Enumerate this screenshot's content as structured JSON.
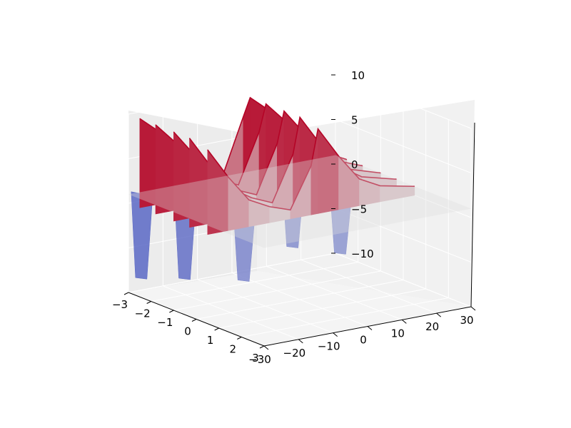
{
  "chart_data": {
    "type": "surface3d",
    "title": "",
    "xlabel": "",
    "ylabel": "",
    "zlabel": "",
    "colormap": "coolwarm",
    "grid": true,
    "x_axis": {
      "range": [
        -3,
        3
      ],
      "ticks": [
        -3,
        -2,
        -1,
        0,
        1,
        2,
        3
      ],
      "tick_labels": [
        "−3",
        "−2",
        "−1",
        "0",
        "1",
        "2",
        "3"
      ]
    },
    "y_axis": {
      "range": [
        -30,
        30
      ],
      "ticks": [
        -30,
        -20,
        -10,
        0,
        10,
        20,
        30
      ],
      "tick_labels": [
        "−30",
        "−20",
        "−10",
        "0",
        "10",
        "20",
        "30"
      ]
    },
    "z_axis": {
      "range": [
        -10,
        10
      ],
      "ticks": [
        -10,
        -5,
        0,
        5,
        10
      ],
      "tick_labels": [
        "−10",
        "−5",
        "0",
        "5",
        "10"
      ]
    },
    "colors": {
      "pane_back": "#ececec",
      "pane_side": "#f1f1f1",
      "pane_floor": "#f4f4f4",
      "grid": "#ffffff",
      "cold": "#3b4cc0",
      "neutral": "#dddddd",
      "hot": "#b40426"
    },
    "surface": {
      "ridges": [
        {
          "x": -2.5,
          "values": [
            {
              "y": -30,
              "z": 10
            },
            {
              "y": -24,
              "z": 8
            },
            {
              "y": -18,
              "z": 5
            },
            {
              "y": -12,
              "z": 2.6
            },
            {
              "y": -6,
              "z": 1.8
            },
            {
              "y": 0,
              "z": 8
            },
            {
              "y": 2,
              "z": 10
            },
            {
              "y": 8,
              "z": 8
            },
            {
              "y": 14,
              "z": 5
            },
            {
              "y": 20,
              "z": 3
            },
            {
              "y": 30,
              "z": 1
            }
          ]
        },
        {
          "x": -1.8,
          "values": [
            {
              "y": -30,
              "z": 10
            },
            {
              "y": -24,
              "z": 7.5
            },
            {
              "y": -18,
              "z": 4.5
            },
            {
              "y": -12,
              "z": 2.5
            },
            {
              "y": -6,
              "z": 1.5
            },
            {
              "y": 0,
              "z": 7
            },
            {
              "y": 2,
              "z": 10
            },
            {
              "y": 8,
              "z": 7.5
            },
            {
              "y": 14,
              "z": 4.5
            },
            {
              "y": 20,
              "z": 2.5
            },
            {
              "y": 30,
              "z": 1
            }
          ]
        },
        {
          "x": -1.0,
          "values": [
            {
              "y": -30,
              "z": 10
            },
            {
              "y": -24,
              "z": 7
            },
            {
              "y": -18,
              "z": 4
            },
            {
              "y": -12,
              "z": 2.2
            },
            {
              "y": -6,
              "z": 1.2
            },
            {
              "y": 0,
              "z": 6.5
            },
            {
              "y": 2,
              "z": 10
            },
            {
              "y": 8,
              "z": 7
            },
            {
              "y": 14,
              "z": 4
            },
            {
              "y": 20,
              "z": 2.2
            },
            {
              "y": 30,
              "z": 1
            }
          ]
        },
        {
          "x": -0.3,
          "values": [
            {
              "y": -30,
              "z": 10
            },
            {
              "y": -24,
              "z": 6.5
            },
            {
              "y": -18,
              "z": 3.5
            },
            {
              "y": -12,
              "z": 2
            },
            {
              "y": -6,
              "z": 1
            },
            {
              "y": 0,
              "z": 6
            },
            {
              "y": 2,
              "z": 10
            },
            {
              "y": 8,
              "z": 6.5
            },
            {
              "y": 14,
              "z": 3.5
            },
            {
              "y": 20,
              "z": 2
            },
            {
              "y": 30,
              "z": 1
            }
          ]
        },
        {
          "x": 0.5,
          "values": [
            {
              "y": -30,
              "z": 9.5
            },
            {
              "y": -24,
              "z": 6
            },
            {
              "y": -18,
              "z": 3
            },
            {
              "y": -12,
              "z": 1.8
            },
            {
              "y": -6,
              "z": 1
            },
            {
              "y": 0,
              "z": 5.5
            },
            {
              "y": 2,
              "z": 9.5
            },
            {
              "y": 8,
              "z": 6
            },
            {
              "y": 14,
              "z": 3
            },
            {
              "y": 20,
              "z": 1.8
            },
            {
              "y": 30,
              "z": 1
            }
          ]
        }
      ],
      "troughs": [
        {
          "x": -2.5,
          "y": -30,
          "z": -8
        },
        {
          "x": -1.5,
          "y": -24,
          "z": -7.5
        },
        {
          "x": 0.5,
          "y": -20,
          "z": -6
        },
        {
          "x": -2.5,
          "y": 0,
          "z": -5
        },
        {
          "x": -1.0,
          "y": 4,
          "z": -5.5
        },
        {
          "x": 0.5,
          "y": 8,
          "z": -5
        }
      ]
    }
  }
}
